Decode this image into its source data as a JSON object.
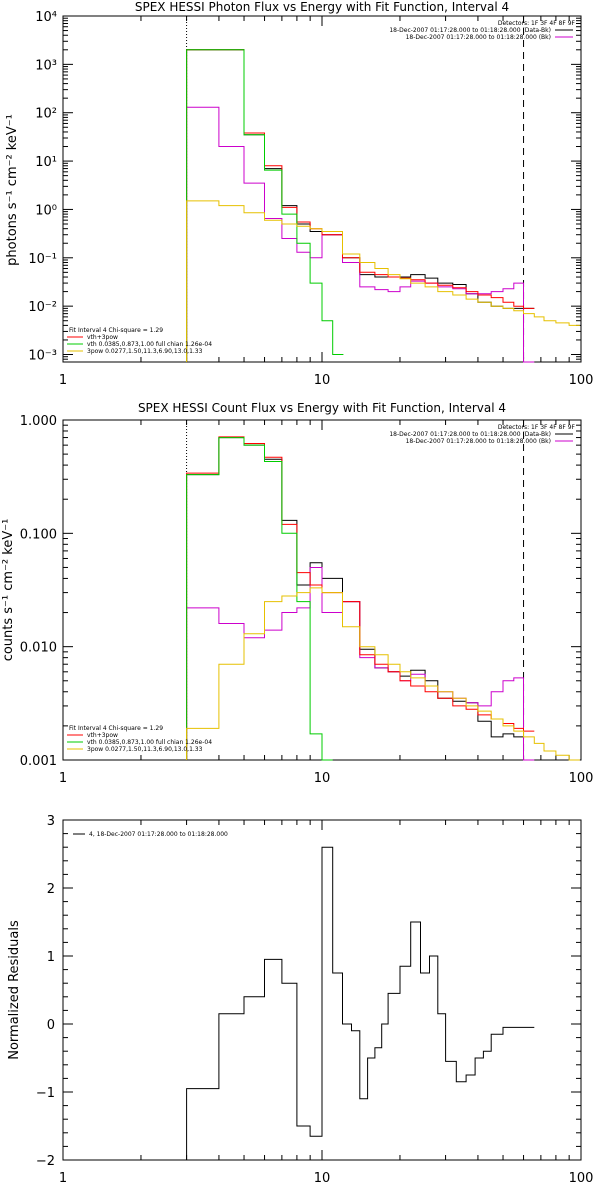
{
  "chart_data": [
    {
      "type": "line",
      "title": "SPEX HESSI Photon Flux vs Energy with Fit Function, Interval 4",
      "ylabel": "photons s⁻¹ cm⁻² keV⁻¹",
      "xlabel": "",
      "x_scale": "log",
      "y_scale": "log",
      "xlim": [
        1,
        100
      ],
      "ylim": [
        0.0007,
        10000
      ],
      "x_ticks": [
        "1",
        "10",
        "100"
      ],
      "y_ticks": [
        "10⁻³",
        "10⁻²",
        "10⁻¹",
        "10⁰",
        "10¹",
        "10²",
        "10³",
        "10⁴"
      ],
      "vlines": [
        {
          "x": 3,
          "style": "dotted"
        },
        {
          "x": 60,
          "style": "dashed"
        }
      ],
      "legend_top": [
        "Detectors: 1F 3F 4F 8F 9F",
        "18-Dec-2007 01:17:28.000 to 01:18:28.000 (Data-Bk)",
        "18-Dec-2007 01:17:28.000 to 01:18:28.000 (Bk)"
      ],
      "legend_bottom": [
        "Fit Interval 4   Chi-square = 1.29",
        "vth+3pow",
        "vth 0.0385,0.873,1.00  full chian 1.26e-04",
        "3pow 0.0277,1.50,11.3,6.90,13.0,1.33"
      ],
      "series": [
        {
          "name": "Data-Bk",
          "color": "#000000",
          "x": [
            3,
            4,
            5,
            6,
            7,
            8,
            9,
            10,
            12,
            14,
            16,
            18,
            20,
            22,
            25,
            28,
            32,
            36,
            40,
            45,
            50,
            55,
            60
          ],
          "y": [
            2000,
            2000,
            35,
            7,
            1.2,
            0.5,
            0.35,
            0.3,
            0.1,
            0.045,
            0.04,
            0.04,
            0.04,
            0.045,
            0.038,
            0.03,
            0.028,
            0.018,
            0.012,
            0.01,
            0.009,
            0.009,
            0.009
          ]
        },
        {
          "name": "Bk",
          "color": "#cc00cc",
          "x": [
            3,
            4,
            5,
            6,
            7,
            8,
            9,
            10,
            12,
            14,
            16,
            18,
            20,
            22,
            25,
            28,
            32,
            36,
            40,
            45,
            50,
            55,
            60
          ],
          "y": [
            130,
            20,
            3.5,
            0.65,
            0.25,
            0.13,
            0.1,
            0.3,
            0.08,
            0.025,
            0.022,
            0.02,
            0.025,
            0.033,
            0.03,
            0.025,
            0.023,
            0.018,
            0.018,
            0.02,
            0.023,
            0.03,
            0.0007
          ]
        },
        {
          "name": "vth+3pow",
          "color": "#ff0000",
          "x": [
            3,
            4,
            5,
            6,
            7,
            8,
            9,
            10,
            12,
            14,
            16,
            18,
            20,
            22,
            25,
            28,
            32,
            36,
            40,
            45,
            50,
            55,
            60
          ],
          "y": [
            2000,
            2000,
            38,
            8,
            1.1,
            0.55,
            0.4,
            0.3,
            0.1,
            0.05,
            0.045,
            0.04,
            0.038,
            0.035,
            0.03,
            0.027,
            0.024,
            0.02,
            0.017,
            0.015,
            0.012,
            0.01,
            0.009
          ]
        },
        {
          "name": "vth",
          "color": "#00cc00",
          "x": [
            3,
            4,
            5,
            6,
            7,
            8,
            9,
            10,
            11
          ],
          "y": [
            2000,
            2000,
            35,
            6.5,
            0.8,
            0.2,
            0.03,
            0.005,
            0.001
          ]
        },
        {
          "name": "3pow",
          "color": "#e6c000",
          "x": [
            3,
            4,
            5,
            6,
            7,
            8,
            9,
            10,
            12,
            14,
            16,
            18,
            20,
            22,
            25,
            28,
            32,
            36,
            40,
            45,
            50,
            55,
            60,
            66,
            72,
            80,
            90
          ],
          "y": [
            1.5,
            1.2,
            0.85,
            0.6,
            0.5,
            0.45,
            0.4,
            0.35,
            0.12,
            0.08,
            0.06,
            0.045,
            0.037,
            0.03,
            0.025,
            0.02,
            0.017,
            0.014,
            0.012,
            0.01,
            0.009,
            0.008,
            0.007,
            0.006,
            0.005,
            0.0045,
            0.004
          ]
        }
      ]
    },
    {
      "type": "line",
      "title": "SPEX HESSI Count Flux vs Energy with Fit Function, Interval 4",
      "ylabel": "counts s⁻¹ cm⁻² keV⁻¹",
      "xlabel": "",
      "x_scale": "log",
      "y_scale": "log",
      "xlim": [
        1,
        100
      ],
      "ylim": [
        0.001,
        1.0
      ],
      "x_ticks": [
        "1",
        "10",
        "100"
      ],
      "y_ticks": [
        "0.001",
        "0.010",
        "0.100",
        "1.000"
      ],
      "vlines": [
        {
          "x": 3,
          "style": "dotted"
        },
        {
          "x": 60,
          "style": "dashed"
        }
      ],
      "legend_top": [
        "Detectors: 1F 3F 4F 8F 9F",
        "18-Dec-2007 01:17:28.000 to 01:18:28.000 (Data-Bk)",
        "18-Dec-2007 01:17:28.000 to 01:18:28.000 (Bk)"
      ],
      "legend_bottom": [
        "Fit Interval 4   Chi-square = 1.29",
        "vth+3pow",
        "vth 0.0385,0.873,1.00  full chian 1.26e-04",
        "3pow 0.0277,1.50,11.3,6.90,13.0,1.33"
      ],
      "series": [
        {
          "name": "Data-Bk",
          "color": "#000000",
          "x": [
            3,
            4,
            5,
            6,
            7,
            8,
            9,
            10,
            12,
            14,
            16,
            18,
            20,
            22,
            25,
            28,
            32,
            36,
            40,
            45,
            50,
            55,
            60
          ],
          "y": [
            0.33,
            0.7,
            0.6,
            0.45,
            0.13,
            0.035,
            0.055,
            0.04,
            0.025,
            0.0095,
            0.0065,
            0.006,
            0.0055,
            0.0062,
            0.005,
            0.0035,
            0.0033,
            0.0032,
            0.0022,
            0.0016,
            0.0017,
            0.0016,
            0.001
          ]
        },
        {
          "name": "Bk",
          "color": "#cc00cc",
          "x": [
            3,
            4,
            5,
            6,
            7,
            8,
            9,
            10,
            12,
            14,
            16,
            18,
            20,
            22,
            25,
            28,
            32,
            36,
            40,
            45,
            50,
            55,
            60
          ],
          "y": [
            0.022,
            0.016,
            0.012,
            0.014,
            0.02,
            0.022,
            0.05,
            0.02,
            0.025,
            0.008,
            0.0065,
            0.006,
            0.005,
            0.0057,
            0.0045,
            0.004,
            0.0035,
            0.0032,
            0.003,
            0.004,
            0.005,
            0.0053,
            0.001
          ]
        },
        {
          "name": "vth+3pow",
          "color": "#ff0000",
          "x": [
            3,
            4,
            5,
            6,
            7,
            8,
            9,
            10,
            12,
            14,
            16,
            18,
            20,
            22,
            25,
            28,
            32,
            36,
            40,
            45,
            50,
            55,
            60
          ],
          "y": [
            0.34,
            0.71,
            0.62,
            0.47,
            0.12,
            0.045,
            0.035,
            0.03,
            0.025,
            0.0085,
            0.007,
            0.006,
            0.005,
            0.0045,
            0.004,
            0.0035,
            0.003,
            0.0028,
            0.0025,
            0.0023,
            0.0021,
            0.0019,
            0.0018
          ]
        },
        {
          "name": "vth",
          "color": "#00cc00",
          "x": [
            3,
            4,
            5,
            6,
            7,
            8,
            9,
            10
          ],
          "y": [
            0.33,
            0.7,
            0.6,
            0.43,
            0.1,
            0.025,
            0.0017,
            0.001
          ]
        },
        {
          "name": "3pow",
          "color": "#e6c000",
          "x": [
            3,
            4,
            5,
            6,
            7,
            8,
            9,
            10,
            12,
            14,
            16,
            18,
            20,
            22,
            25,
            28,
            32,
            36,
            40,
            45,
            50,
            55,
            60,
            66,
            72,
            80,
            90
          ],
          "y": [
            0.0019,
            0.007,
            0.013,
            0.025,
            0.028,
            0.03,
            0.033,
            0.03,
            0.015,
            0.01,
            0.0085,
            0.007,
            0.006,
            0.0053,
            0.0045,
            0.004,
            0.0035,
            0.003,
            0.0027,
            0.0023,
            0.002,
            0.0018,
            0.0016,
            0.0014,
            0.0012,
            0.0011,
            0.001
          ]
        }
      ]
    },
    {
      "type": "line",
      "title": "",
      "ylabel": "Normalized Residuals",
      "xlabel": "",
      "x_scale": "log",
      "y_scale": "linear",
      "xlim": [
        1,
        100
      ],
      "ylim": [
        -2,
        3
      ],
      "x_ticks": [
        "1",
        "10",
        "100"
      ],
      "y_ticks": [
        "−2",
        "−1",
        "0",
        "1",
        "2",
        "3"
      ],
      "legend_top": [
        "4, 18-Dec-2007 01:17:28.000 to 01:18:28.000"
      ],
      "series": [
        {
          "color": "#000000",
          "x": [
            3,
            4,
            5,
            6,
            7,
            8,
            9,
            10,
            11,
            12,
            13,
            14,
            15,
            16,
            17,
            18,
            20,
            22,
            24,
            26,
            28,
            30,
            33,
            36,
            39,
            42,
            45,
            50,
            55,
            60
          ],
          "y": [
            -0.95,
            0.15,
            0.4,
            0.95,
            0.6,
            -1.5,
            -1.65,
            2.6,
            0.75,
            0.0,
            -0.1,
            -1.1,
            -0.5,
            -0.35,
            0.0,
            0.45,
            0.85,
            1.5,
            0.75,
            1.0,
            0.15,
            -0.55,
            -0.85,
            -0.75,
            -0.5,
            -0.4,
            -0.15,
            -0.05,
            -0.05,
            -0.05
          ]
        }
      ]
    }
  ]
}
